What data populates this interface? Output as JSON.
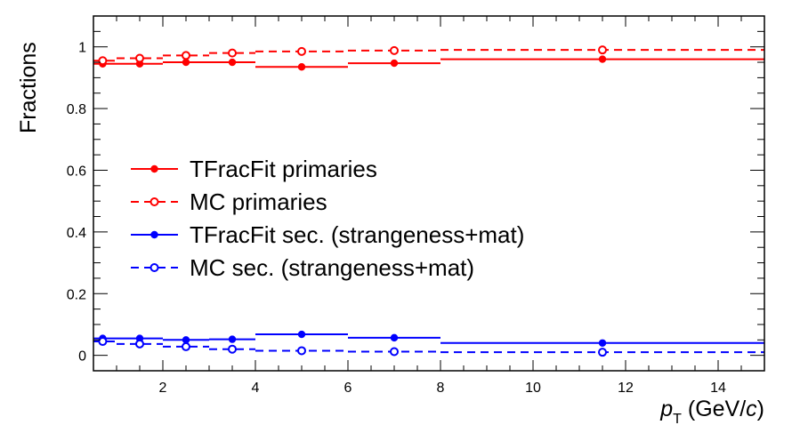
{
  "chart_data": {
    "type": "line",
    "title": "",
    "xlabel": "p_T (GeV/c)",
    "ylabel": "Fractions",
    "xlim": [
      0.5,
      15
    ],
    "ylim": [
      -0.05,
      1.1
    ],
    "grid": false,
    "legend_position": "center-left",
    "x_ticks": [
      2,
      4,
      6,
      8,
      10,
      12,
      14
    ],
    "y_ticks": [
      0,
      0.2,
      0.4,
      0.6,
      0.8,
      1
    ],
    "series": [
      {
        "name": "TFracFit primaries",
        "color": "#ff0000",
        "style": "solid",
        "marker": "filled-circle",
        "bins": [
          [
            0.5,
            1.0
          ],
          [
            1.0,
            2.0
          ],
          [
            2.0,
            3.0
          ],
          [
            3.0,
            4.0
          ],
          [
            4.0,
            6.0
          ],
          [
            6.0,
            8.0
          ],
          [
            8.0,
            15.0
          ]
        ],
        "x": [
          0.7,
          1.5,
          2.5,
          3.5,
          5.0,
          7.0,
          11.5
        ],
        "values": [
          0.945,
          0.945,
          0.95,
          0.95,
          0.935,
          0.947,
          0.96
        ]
      },
      {
        "name": "MC primaries",
        "color": "#ff0000",
        "style": "dashed",
        "marker": "open-circle",
        "bins": [
          [
            0.5,
            1.0
          ],
          [
            1.0,
            2.0
          ],
          [
            2.0,
            3.0
          ],
          [
            3.0,
            4.0
          ],
          [
            4.0,
            6.0
          ],
          [
            6.0,
            8.0
          ],
          [
            8.0,
            15.0
          ]
        ],
        "x": [
          0.7,
          1.5,
          2.5,
          3.5,
          5.0,
          7.0,
          11.5
        ],
        "values": [
          0.955,
          0.963,
          0.972,
          0.98,
          0.985,
          0.988,
          0.99
        ]
      },
      {
        "name": "TFracFit sec. (strangeness+mat)",
        "color": "#0000ff",
        "style": "solid",
        "marker": "filled-circle",
        "bins": [
          [
            0.5,
            1.0
          ],
          [
            1.0,
            2.0
          ],
          [
            2.0,
            3.0
          ],
          [
            3.0,
            4.0
          ],
          [
            4.0,
            6.0
          ],
          [
            6.0,
            8.0
          ],
          [
            8.0,
            15.0
          ]
        ],
        "x": [
          0.7,
          1.5,
          2.5,
          3.5,
          5.0,
          7.0,
          11.5
        ],
        "values": [
          0.055,
          0.055,
          0.05,
          0.052,
          0.068,
          0.057,
          0.04
        ]
      },
      {
        "name": "MC sec. (strangeness+mat)",
        "color": "#0000ff",
        "style": "dashed",
        "marker": "open-circle",
        "bins": [
          [
            0.5,
            1.0
          ],
          [
            1.0,
            2.0
          ],
          [
            2.0,
            3.0
          ],
          [
            3.0,
            4.0
          ],
          [
            4.0,
            6.0
          ],
          [
            6.0,
            8.0
          ],
          [
            8.0,
            15.0
          ]
        ],
        "x": [
          0.7,
          1.5,
          2.5,
          3.5,
          5.0,
          7.0,
          11.5
        ],
        "values": [
          0.045,
          0.037,
          0.028,
          0.02,
          0.015,
          0.012,
          0.01
        ]
      }
    ]
  }
}
